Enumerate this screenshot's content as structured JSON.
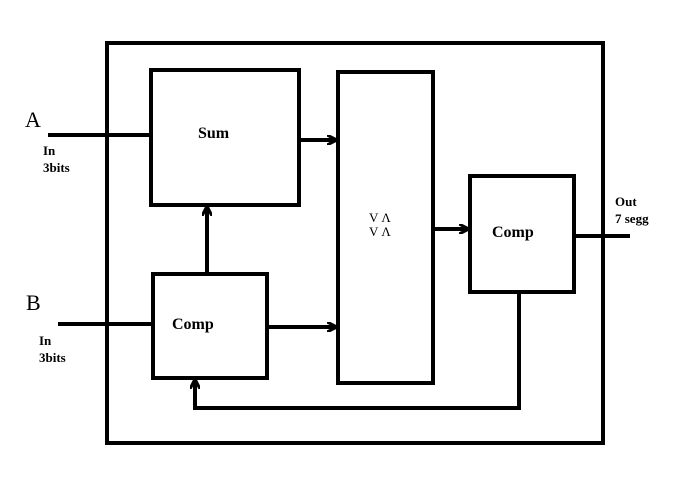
{
  "colors": {
    "background": "#ffffff",
    "stroke": "#000000"
  },
  "inputs": {
    "a": {
      "name": "A",
      "desc_line1": "In",
      "desc_line2": "3bits"
    },
    "b": {
      "name": "B",
      "desc_line1": "In",
      "desc_line2": "3bits"
    }
  },
  "output": {
    "desc_line1": "Out",
    "desc_line2": "7 segg"
  },
  "blocks": {
    "sum": {
      "label": "Sum"
    },
    "comp_left": {
      "label": "Comp"
    },
    "mux": {
      "label_line1": "V Λ",
      "label_line2": "V Λ"
    },
    "comp_right": {
      "label": "Comp"
    }
  }
}
